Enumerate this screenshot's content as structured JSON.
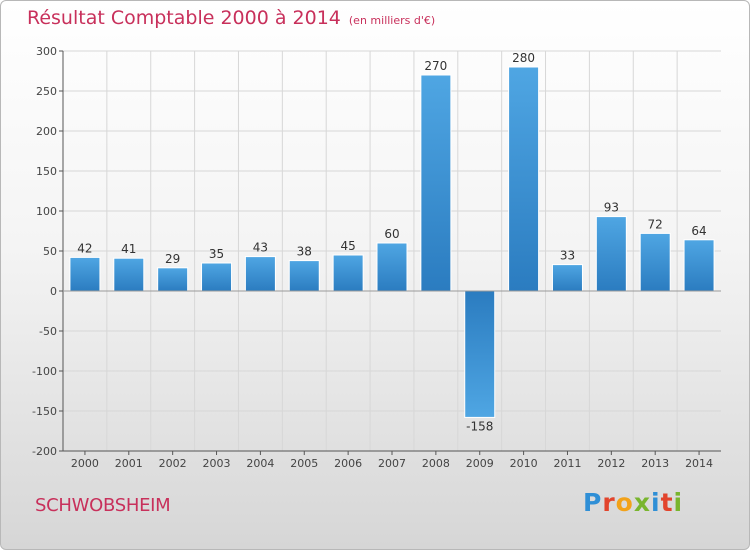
{
  "chart_data": {
    "type": "bar",
    "title": "Résultat Comptable 2000 à 2014",
    "subtitle": "(en milliers d'€)",
    "categories": [
      "2000",
      "2001",
      "2002",
      "2003",
      "2004",
      "2005",
      "2006",
      "2007",
      "2008",
      "2009",
      "2010",
      "2011",
      "2012",
      "2013",
      "2014"
    ],
    "values": [
      42,
      41,
      29,
      35,
      43,
      38,
      45,
      60,
      270,
      -158,
      280,
      33,
      93,
      72,
      64
    ],
    "value_labels": [
      "42",
      "41",
      "29",
      "35",
      "43",
      "38",
      "45",
      "60",
      "270",
      "-158",
      "280",
      "33",
      "93",
      "72",
      "64"
    ],
    "ylim": [
      -200,
      300
    ],
    "yticks": [
      300,
      250,
      200,
      150,
      100,
      50,
      0,
      -50,
      -100,
      -150,
      -200
    ],
    "ytick_labels": [
      "300",
      "250",
      "200",
      "150",
      "100",
      "50",
      "0",
      "-50",
      "-100",
      "-150",
      "-200"
    ],
    "grid": true,
    "bar_color": "#4fa6e3",
    "bar_color_dark": "#2b7cc0"
  },
  "footer": {
    "commune": "SCHWOBSHEIM",
    "logo_letters": [
      "P",
      "r",
      "o",
      "x",
      "i",
      "t",
      "i"
    ],
    "logo_colors": [
      "#2f8fd6",
      "#e2442c",
      "#f2a21a",
      "#79b52e",
      "#2f8fd6",
      "#e2442c",
      "#79b52e"
    ]
  },
  "colors": {
    "title": "#c8305b",
    "grid": "#d7d7d7",
    "axis": "#555555"
  }
}
